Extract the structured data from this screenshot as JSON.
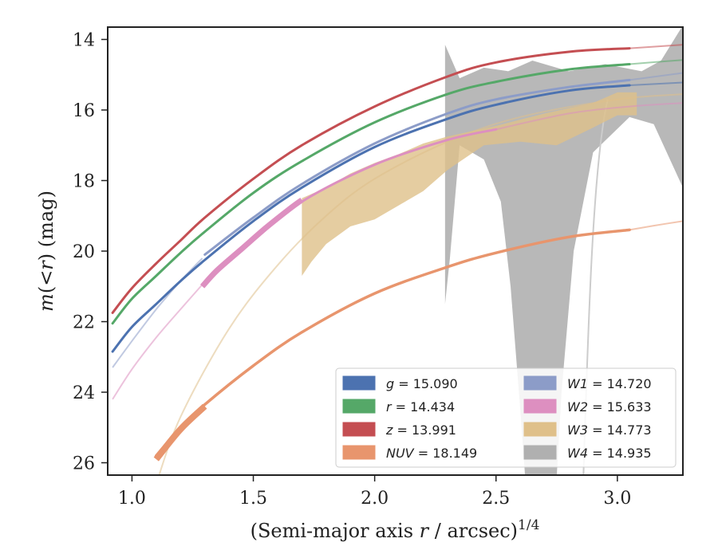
{
  "chart_data": {
    "type": "line",
    "xlabel": "(Semi-major axis r / arcsec)",
    "xlabel_parts": {
      "pre": "(Semi-major axis ",
      "var": "r",
      "post": " / arcsec)",
      "sup": "1/4"
    },
    "ylabel": "m(< r) (mag)",
    "ylabel_parts": {
      "m": "m",
      "open": "(<",
      "var": "r",
      "close": ") (mag)"
    },
    "xlim": [
      0.9,
      3.27
    ],
    "ylim": [
      26.35,
      13.65
    ],
    "y_inverted": true,
    "xticks": [
      1.0,
      1.5,
      2.0,
      2.5,
      3.0
    ],
    "xtick_labels": [
      "1.0",
      "1.5",
      "2.0",
      "2.5",
      "3.0"
    ],
    "yticks": [
      14,
      16,
      18,
      20,
      22,
      24,
      26
    ],
    "ytick_labels": [
      "14",
      "16",
      "18",
      "20",
      "22",
      "24",
      "26"
    ],
    "grid": false,
    "legend_position": "lower-right",
    "legend": [
      {
        "var": "g",
        "value": "15.090",
        "color": "#4c72b0"
      },
      {
        "var": "r",
        "value": "14.434",
        "color": "#55a868"
      },
      {
        "var": "z",
        "value": "13.991",
        "color": "#c44e52"
      },
      {
        "var": "NUV",
        "value": "18.149",
        "color": "#e8956d"
      },
      {
        "var": "W1",
        "value": "14.720",
        "color": "#8c9cc8"
      },
      {
        "var": "W2",
        "value": "15.633",
        "color": "#dd8fc0"
      },
      {
        "var": "W3",
        "value": "14.773",
        "color": "#dfc08a"
      },
      {
        "var": "W4",
        "value": "14.935",
        "color": "#b0b0b0"
      }
    ],
    "series": [
      {
        "name": "g",
        "color": "#4c72b0",
        "x": [
          0.92,
          1.0,
          1.1,
          1.2,
          1.3,
          1.5,
          1.7,
          2.0,
          2.3,
          2.5,
          2.8,
          3.05
        ],
        "y": [
          22.85,
          22.15,
          21.5,
          20.85,
          20.25,
          19.15,
          18.2,
          17.05,
          16.25,
          15.85,
          15.45,
          15.3
        ]
      },
      {
        "name": "r",
        "color": "#55a868",
        "x": [
          0.92,
          1.0,
          1.1,
          1.2,
          1.3,
          1.5,
          1.7,
          2.0,
          2.3,
          2.5,
          2.8,
          3.05
        ],
        "y": [
          22.05,
          21.35,
          20.7,
          20.05,
          19.45,
          18.35,
          17.45,
          16.35,
          15.55,
          15.2,
          14.85,
          14.7
        ]
      },
      {
        "name": "z",
        "color": "#c44e52",
        "x": [
          0.92,
          1.0,
          1.1,
          1.2,
          1.3,
          1.5,
          1.7,
          2.0,
          2.3,
          2.5,
          2.8,
          3.05
        ],
        "y": [
          21.75,
          21.05,
          20.35,
          19.7,
          19.05,
          17.95,
          17.0,
          15.9,
          15.05,
          14.65,
          14.35,
          14.25
        ]
      },
      {
        "name": "NUV",
        "color": "#e8956d",
        "x": [
          1.1,
          1.2,
          1.3,
          1.5,
          1.7,
          2.0,
          2.3,
          2.5,
          2.8,
          3.05
        ],
        "y": [
          25.8,
          25.0,
          24.35,
          23.25,
          22.3,
          21.2,
          20.45,
          20.05,
          19.6,
          19.4
        ]
      },
      {
        "name": "W1",
        "color": "#8c9cc8",
        "x": [
          1.3,
          1.5,
          1.7,
          2.0,
          2.3,
          2.5,
          2.8,
          3.05
        ],
        "y": [
          20.1,
          19.05,
          18.1,
          16.95,
          16.1,
          15.7,
          15.35,
          15.15
        ]
      },
      {
        "name": "W2",
        "color": "#dd8fc0",
        "x": [
          1.29,
          1.4,
          1.5,
          1.7,
          2.0,
          2.3,
          2.5
        ],
        "y": [
          20.95,
          20.3,
          19.7,
          18.6,
          17.55,
          16.85,
          16.55
        ]
      },
      {
        "name": "W3",
        "color": "#dfc08a",
        "x": [
          1.7,
          1.8,
          2.0,
          2.2,
          2.3,
          2.5,
          2.8,
          3.1
        ],
        "y": [
          19.6,
          19.3,
          18.6,
          18.2,
          17.4,
          17.1,
          16.6,
          16.4
        ]
      }
    ]
  }
}
